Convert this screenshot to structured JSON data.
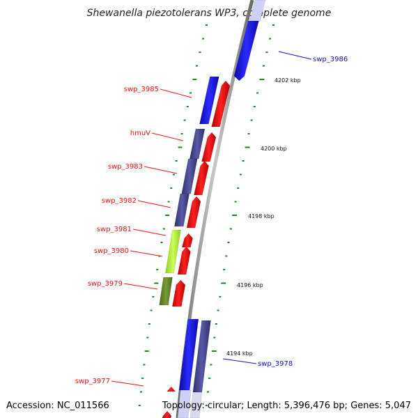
{
  "title": "Shewanella piezotolerans WP3, complete genome",
  "footer": {
    "accession": "Accession: NC_011566",
    "topology": "Topology: circular; Length: 5,396,476 bp; Genes: 5,047"
  },
  "colors": {
    "label_red": "#ee1111",
    "label_blue": "#1111cc",
    "backbone": "#8a8a8a",
    "tick_green": "#1a8a1a",
    "blue_gene": "#1a1aee",
    "navy_gene": "#4a4a8e",
    "red_gene": "#ee1111",
    "lime_gene": "#aaee33",
    "olive_gene": "#6b8a2a"
  },
  "scale_labels": [
    "4202 kbp",
    "4200 kbp",
    "4198 kbp",
    "4196 kbp",
    "4194 kbp"
  ],
  "gene_labels": [
    {
      "text": "swp_3986",
      "color": "blue"
    },
    {
      "text": "swp_3985",
      "color": "red"
    },
    {
      "text": "hmuV",
      "color": "red"
    },
    {
      "text": "swp_3983",
      "color": "red"
    },
    {
      "text": "swp_3982",
      "color": "red"
    },
    {
      "text": "swp_3981",
      "color": "red"
    },
    {
      "text": "swp_3980",
      "color": "red"
    },
    {
      "text": "swp_3979",
      "color": "red"
    },
    {
      "text": "swp_3978",
      "color": "blue"
    },
    {
      "text": "swp_3977",
      "color": "red"
    }
  ]
}
